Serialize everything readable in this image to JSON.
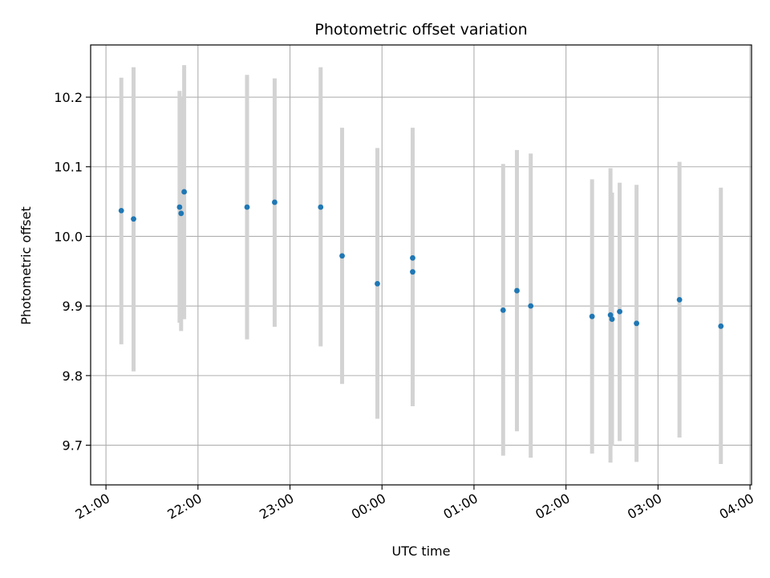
{
  "chart_data": {
    "type": "scatter",
    "title": "Photometric offset variation",
    "xlabel": "UTC time",
    "ylabel": "Photometric offset",
    "x_axis_kind": "time",
    "xlim": [
      "20:50",
      "04:01"
    ],
    "ylim": [
      9.643,
      10.275
    ],
    "x_ticks": [
      "21:00",
      "22:00",
      "23:00",
      "00:00",
      "01:00",
      "02:00",
      "03:00",
      "04:00"
    ],
    "y_ticks": [
      9.7,
      9.8,
      9.9,
      10.0,
      10.1,
      10.2
    ],
    "grid": true,
    "point_color": "#1f77b4",
    "errorbar_color": "#d3d3d3",
    "series": [
      {
        "points": [
          {
            "t": "21:10",
            "y": 10.037,
            "lo": 9.845,
            "hi": 10.228
          },
          {
            "t": "21:18",
            "y": 10.025,
            "lo": 9.806,
            "hi": 10.243
          },
          {
            "t": "21:48",
            "y": 10.042,
            "lo": 9.876,
            "hi": 10.209
          },
          {
            "t": "21:49",
            "y": 10.033,
            "lo": 9.864,
            "hi": 10.2
          },
          {
            "t": "21:51",
            "y": 10.064,
            "lo": 9.881,
            "hi": 10.246
          },
          {
            "t": "22:32",
            "y": 10.042,
            "lo": 9.852,
            "hi": 10.232
          },
          {
            "t": "22:50",
            "y": 10.049,
            "lo": 9.87,
            "hi": 10.227
          },
          {
            "t": "23:20",
            "y": 10.042,
            "lo": 9.842,
            "hi": 10.243
          },
          {
            "t": "23:34",
            "y": 9.972,
            "lo": 9.788,
            "hi": 10.156
          },
          {
            "t": "23:57",
            "y": 9.932,
            "lo": 9.738,
            "hi": 10.127
          },
          {
            "t": "00:20",
            "y": 9.969,
            "lo": 9.781,
            "hi": 10.156
          },
          {
            "t": "00:20",
            "y": 9.949,
            "lo": 9.756,
            "hi": 10.143
          },
          {
            "t": "01:19",
            "y": 9.894,
            "lo": 9.685,
            "hi": 10.104
          },
          {
            "t": "01:28",
            "y": 9.922,
            "lo": 9.72,
            "hi": 10.124
          },
          {
            "t": "01:37",
            "y": 9.9,
            "lo": 9.682,
            "hi": 10.119
          },
          {
            "t": "02:17",
            "y": 9.885,
            "lo": 9.688,
            "hi": 10.082
          },
          {
            "t": "02:29",
            "y": 9.887,
            "lo": 9.675,
            "hi": 10.098
          },
          {
            "t": "02:30",
            "y": 9.881,
            "lo": 9.699,
            "hi": 10.063
          },
          {
            "t": "02:35",
            "y": 9.892,
            "lo": 9.706,
            "hi": 10.077
          },
          {
            "t": "02:46",
            "y": 9.875,
            "lo": 9.676,
            "hi": 10.074
          },
          {
            "t": "03:14",
            "y": 9.909,
            "lo": 9.711,
            "hi": 10.107
          },
          {
            "t": "03:41",
            "y": 9.871,
            "lo": 9.673,
            "hi": 10.07
          }
        ]
      }
    ]
  }
}
